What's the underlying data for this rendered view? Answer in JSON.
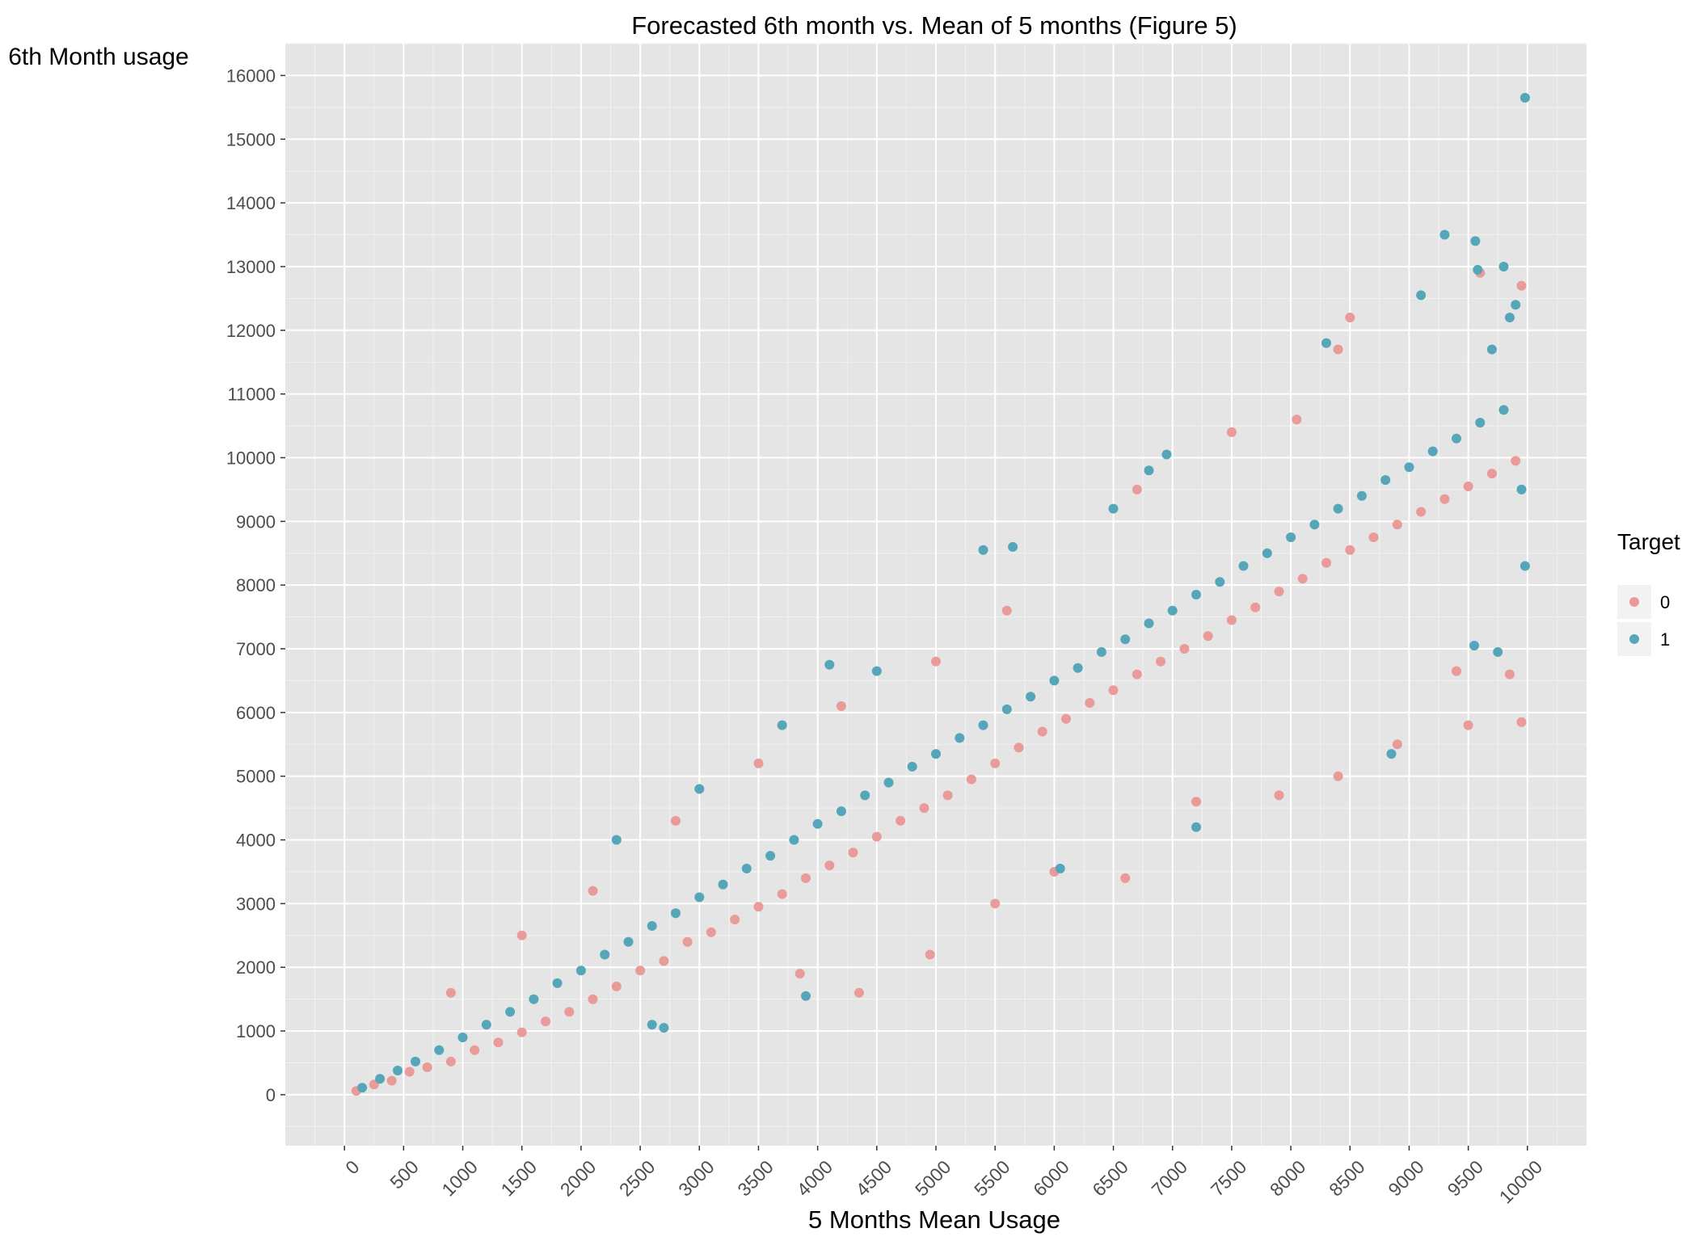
{
  "chart_data": {
    "type": "scatter",
    "title": "Forecasted 6th month vs. Mean of 5 months (Figure 5)",
    "xlabel": "5 Months Mean Usage",
    "ylabel": "6th Month usage",
    "xlim": [
      -500,
      10500
    ],
    "ylim": [
      -800,
      16500
    ],
    "x_ticks": [
      "0",
      "500",
      "1000",
      "1500",
      "2000",
      "2500",
      "3000",
      "3500",
      "4000",
      "4500",
      "5000",
      "5500",
      "6000",
      "6500",
      "7000",
      "7500",
      "8000",
      "8500",
      "9000",
      "9500",
      "10000"
    ],
    "y_ticks": [
      "0",
      "1000",
      "2000",
      "3000",
      "4000",
      "5000",
      "6000",
      "7000",
      "8000",
      "9000",
      "10000",
      "11000",
      "12000",
      "13000",
      "14000",
      "15000",
      "16000"
    ],
    "x_tick_angle": -45,
    "grid": true,
    "background": "#e5e5e5",
    "legend": {
      "title": "Target",
      "position": "right",
      "entries": [
        {
          "label": "0",
          "color": "#e89b98"
        },
        {
          "label": "1",
          "color": "#56a6ba"
        }
      ]
    },
    "series": [
      {
        "name": "0",
        "color": "#e89b98",
        "points": [
          [
            100,
            60
          ],
          [
            250,
            160
          ],
          [
            400,
            220
          ],
          [
            550,
            360
          ],
          [
            700,
            430
          ],
          [
            900,
            520
          ],
          [
            1100,
            700
          ],
          [
            1300,
            820
          ],
          [
            1500,
            980
          ],
          [
            1700,
            1150
          ],
          [
            1900,
            1300
          ],
          [
            2100,
            1500
          ],
          [
            2300,
            1700
          ],
          [
            2500,
            1950
          ],
          [
            2700,
            2100
          ],
          [
            2900,
            2400
          ],
          [
            3100,
            2550
          ],
          [
            3300,
            2750
          ],
          [
            3500,
            2950
          ],
          [
            3700,
            3150
          ],
          [
            3900,
            3400
          ],
          [
            4100,
            3600
          ],
          [
            4300,
            3800
          ],
          [
            4500,
            4050
          ],
          [
            4700,
            4300
          ],
          [
            4900,
            4500
          ],
          [
            5100,
            4700
          ],
          [
            5300,
            4950
          ],
          [
            5500,
            5200
          ],
          [
            5700,
            5450
          ],
          [
            5900,
            5700
          ],
          [
            6100,
            5900
          ],
          [
            6300,
            6150
          ],
          [
            6500,
            6350
          ],
          [
            6700,
            6600
          ],
          [
            6900,
            6800
          ],
          [
            7100,
            7000
          ],
          [
            7300,
            7200
          ],
          [
            7500,
            7450
          ],
          [
            7700,
            7650
          ],
          [
            7900,
            7900
          ],
          [
            8100,
            8100
          ],
          [
            8300,
            8350
          ],
          [
            8500,
            8550
          ],
          [
            8700,
            8750
          ],
          [
            8900,
            8950
          ],
          [
            9100,
            9150
          ],
          [
            9300,
            9350
          ],
          [
            9500,
            9550
          ],
          [
            9700,
            9750
          ],
          [
            9900,
            9950
          ],
          [
            3850,
            1900
          ],
          [
            4350,
            1600
          ],
          [
            4950,
            2200
          ],
          [
            5500,
            3000
          ],
          [
            6000,
            3500
          ],
          [
            6600,
            3400
          ],
          [
            7200,
            4600
          ],
          [
            7900,
            4700
          ],
          [
            8400,
            5000
          ],
          [
            8900,
            5500
          ],
          [
            9500,
            5800
          ],
          [
            9950,
            5850
          ],
          [
            9400,
            6650
          ],
          [
            9850,
            6600
          ],
          [
            8500,
            12200
          ],
          [
            9600,
            12900
          ],
          [
            9950,
            12700
          ],
          [
            8400,
            11700
          ],
          [
            8050,
            10600
          ],
          [
            7500,
            10400
          ],
          [
            6700,
            9500
          ],
          [
            5600,
            7600
          ],
          [
            5000,
            6800
          ],
          [
            4200,
            6100
          ],
          [
            3500,
            5200
          ],
          [
            2800,
            4300
          ],
          [
            2100,
            3200
          ],
          [
            1500,
            2500
          ],
          [
            900,
            1600
          ]
        ]
      },
      {
        "name": "1",
        "color": "#56a6ba",
        "points": [
          [
            150,
            110
          ],
          [
            300,
            250
          ],
          [
            450,
            380
          ],
          [
            600,
            520
          ],
          [
            800,
            700
          ],
          [
            1000,
            900
          ],
          [
            1200,
            1100
          ],
          [
            1400,
            1300
          ],
          [
            1600,
            1500
          ],
          [
            1800,
            1750
          ],
          [
            2000,
            1950
          ],
          [
            2200,
            2200
          ],
          [
            2400,
            2400
          ],
          [
            2600,
            2650
          ],
          [
            2800,
            2850
          ],
          [
            3000,
            3100
          ],
          [
            3200,
            3300
          ],
          [
            3400,
            3550
          ],
          [
            3600,
            3750
          ],
          [
            3800,
            4000
          ],
          [
            4000,
            4250
          ],
          [
            4200,
            4450
          ],
          [
            4400,
            4700
          ],
          [
            4600,
            4900
          ],
          [
            4800,
            5150
          ],
          [
            5000,
            5350
          ],
          [
            5200,
            5600
          ],
          [
            5400,
            5800
          ],
          [
            5600,
            6050
          ],
          [
            5800,
            6250
          ],
          [
            6000,
            6500
          ],
          [
            6200,
            6700
          ],
          [
            6400,
            6950
          ],
          [
            6600,
            7150
          ],
          [
            6800,
            7400
          ],
          [
            7000,
            7600
          ],
          [
            7200,
            7850
          ],
          [
            7400,
            8050
          ],
          [
            7600,
            8300
          ],
          [
            7800,
            8500
          ],
          [
            8000,
            8750
          ],
          [
            8200,
            8950
          ],
          [
            8400,
            9200
          ],
          [
            8600,
            9400
          ],
          [
            8800,
            9650
          ],
          [
            9000,
            9850
          ],
          [
            9200,
            10100
          ],
          [
            9400,
            10300
          ],
          [
            9600,
            10550
          ],
          [
            9800,
            10750
          ],
          [
            9980,
            15650
          ],
          [
            9300,
            13500
          ],
          [
            9560,
            13400
          ],
          [
            9800,
            13000
          ],
          [
            9580,
            12950
          ],
          [
            9100,
            12550
          ],
          [
            9850,
            12200
          ],
          [
            9900,
            12400
          ],
          [
            8300,
            11800
          ],
          [
            9700,
            11700
          ],
          [
            6950,
            10050
          ],
          [
            6800,
            9800
          ],
          [
            6500,
            9200
          ],
          [
            5400,
            8550
          ],
          [
            5650,
            8600
          ],
          [
            4100,
            6750
          ],
          [
            4500,
            6650
          ],
          [
            3700,
            5800
          ],
          [
            3000,
            4800
          ],
          [
            2300,
            4000
          ],
          [
            2700,
            1050
          ],
          [
            2600,
            1100
          ],
          [
            3900,
            1550
          ],
          [
            8850,
            5350
          ],
          [
            9550,
            7050
          ],
          [
            9750,
            6950
          ],
          [
            9950,
            9500
          ],
          [
            9980,
            8300
          ],
          [
            7200,
            4200
          ],
          [
            6050,
            3550
          ]
        ]
      }
    ]
  }
}
